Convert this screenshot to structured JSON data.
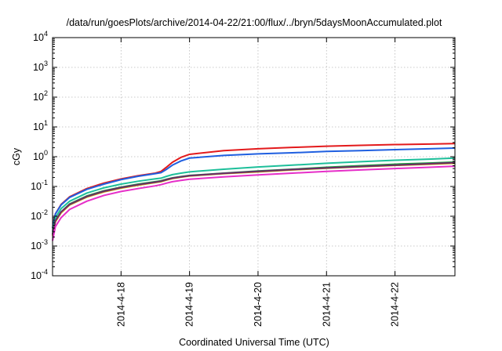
{
  "chart_data": {
    "type": "line",
    "title": "/data/run/goesPlots/archive/2014-04-22/21:00/flux/../bryn/5daysMoonAccumulated.plot",
    "xlabel": "Coordinated Universal Time (UTC)",
    "ylabel": "cGy",
    "y_scale": "log",
    "ylim": [
      0.0001,
      10000
    ],
    "xlim": [
      "2014-04-17 00:00",
      "2014-04-22 21:00"
    ],
    "grid": true,
    "legend": "none",
    "x_ticks": [
      {
        "x": "2014-04-18 00:00",
        "label": "2014-4-18"
      },
      {
        "x": "2014-04-19 00:00",
        "label": "2014-4-19"
      },
      {
        "x": "2014-04-20 00:00",
        "label": "2014-4-20"
      },
      {
        "x": "2014-04-21 00:00",
        "label": "2014-4-21"
      },
      {
        "x": "2014-04-22 00:00",
        "label": "2014-4-22"
      }
    ],
    "y_ticks": [
      {
        "base": "10",
        "exp": "-4",
        "value": 0.0001
      },
      {
        "base": "10",
        "exp": "-3",
        "value": 0.001
      },
      {
        "base": "10",
        "exp": "-2",
        "value": 0.01
      },
      {
        "base": "10",
        "exp": "-1",
        "value": 0.1
      },
      {
        "base": "10",
        "exp": "0",
        "value": 1
      },
      {
        "base": "10",
        "exp": "1",
        "value": 10
      },
      {
        "base": "10",
        "exp": "2",
        "value": 100
      },
      {
        "base": "10",
        "exp": "3",
        "value": 1000
      },
      {
        "base": "10",
        "exp": "4",
        "value": 10000
      }
    ],
    "series": [
      {
        "color": "#e31a1c",
        "points": [
          [
            "2014-04-17 00:00",
            0.004
          ],
          [
            "2014-04-17 01:00",
            0.012
          ],
          [
            "2014-04-17 03:00",
            0.025
          ],
          [
            "2014-04-17 06:00",
            0.045
          ],
          [
            "2014-04-17 12:00",
            0.085
          ],
          [
            "2014-04-17 18:00",
            0.13
          ],
          [
            "2014-04-18 00:00",
            0.18
          ],
          [
            "2014-04-18 06:00",
            0.23
          ],
          [
            "2014-04-18 12:00",
            0.28
          ],
          [
            "2014-04-18 14:00",
            0.32
          ],
          [
            "2014-04-18 16:00",
            0.45
          ],
          [
            "2014-04-18 18:00",
            0.65
          ],
          [
            "2014-04-18 21:00",
            0.95
          ],
          [
            "2014-04-19 00:00",
            1.2
          ],
          [
            "2014-04-19 12:00",
            1.6
          ],
          [
            "2014-04-20 00:00",
            1.85
          ],
          [
            "2014-04-20 12:00",
            2.05
          ],
          [
            "2014-04-21 00:00",
            2.25
          ],
          [
            "2014-04-21 12:00",
            2.4
          ],
          [
            "2014-04-22 00:00",
            2.55
          ],
          [
            "2014-04-22 12:00",
            2.65
          ],
          [
            "2014-04-22 21:00",
            2.75
          ]
        ]
      },
      {
        "color": "#1f5fe0",
        "points": [
          [
            "2014-04-17 00:00",
            0.004
          ],
          [
            "2014-04-17 01:00",
            0.012
          ],
          [
            "2014-04-17 03:00",
            0.024
          ],
          [
            "2014-04-17 06:00",
            0.043
          ],
          [
            "2014-04-17 12:00",
            0.08
          ],
          [
            "2014-04-17 18:00",
            0.12
          ],
          [
            "2014-04-18 00:00",
            0.17
          ],
          [
            "2014-04-18 06:00",
            0.22
          ],
          [
            "2014-04-18 12:00",
            0.27
          ],
          [
            "2014-04-18 14:00",
            0.29
          ],
          [
            "2014-04-18 16:00",
            0.38
          ],
          [
            "2014-04-18 18:00",
            0.52
          ],
          [
            "2014-04-18 21:00",
            0.72
          ],
          [
            "2014-04-19 00:00",
            0.9
          ],
          [
            "2014-04-19 12:00",
            1.1
          ],
          [
            "2014-04-20 00:00",
            1.25
          ],
          [
            "2014-04-20 12:00",
            1.35
          ],
          [
            "2014-04-21 00:00",
            1.5
          ],
          [
            "2014-04-21 12:00",
            1.6
          ],
          [
            "2014-04-22 00:00",
            1.72
          ],
          [
            "2014-04-22 12:00",
            1.85
          ],
          [
            "2014-04-22 21:00",
            1.95
          ]
        ]
      },
      {
        "color": "#1dbf9a",
        "points": [
          [
            "2014-04-17 00:00",
            0.003
          ],
          [
            "2014-04-17 01:00",
            0.009
          ],
          [
            "2014-04-17 03:00",
            0.018
          ],
          [
            "2014-04-17 06:00",
            0.032
          ],
          [
            "2014-04-17 12:00",
            0.06
          ],
          [
            "2014-04-17 18:00",
            0.09
          ],
          [
            "2014-04-18 00:00",
            0.12
          ],
          [
            "2014-04-18 06:00",
            0.15
          ],
          [
            "2014-04-18 12:00",
            0.18
          ],
          [
            "2014-04-18 14:00",
            0.19
          ],
          [
            "2014-04-18 16:00",
            0.22
          ],
          [
            "2014-04-18 18:00",
            0.25
          ],
          [
            "2014-04-18 21:00",
            0.28
          ],
          [
            "2014-04-19 00:00",
            0.31
          ],
          [
            "2014-04-19 12:00",
            0.38
          ],
          [
            "2014-04-20 00:00",
            0.45
          ],
          [
            "2014-04-20 12:00",
            0.52
          ],
          [
            "2014-04-21 00:00",
            0.6
          ],
          [
            "2014-04-21 12:00",
            0.68
          ],
          [
            "2014-04-22 00:00",
            0.76
          ],
          [
            "2014-04-22 12:00",
            0.83
          ],
          [
            "2014-04-22 21:00",
            0.9
          ]
        ]
      },
      {
        "color": "#1a9e3a",
        "points": [
          [
            "2014-04-17 00:00",
            0.0025
          ],
          [
            "2014-04-17 01:00",
            0.007
          ],
          [
            "2014-04-17 03:00",
            0.014
          ],
          [
            "2014-04-17 06:00",
            0.026
          ],
          [
            "2014-04-17 12:00",
            0.048
          ],
          [
            "2014-04-17 18:00",
            0.072
          ],
          [
            "2014-04-18 00:00",
            0.095
          ],
          [
            "2014-04-18 06:00",
            0.12
          ],
          [
            "2014-04-18 12:00",
            0.145
          ],
          [
            "2014-04-18 14:00",
            0.155
          ],
          [
            "2014-04-18 16:00",
            0.175
          ],
          [
            "2014-04-18 18:00",
            0.195
          ],
          [
            "2014-04-18 21:00",
            0.215
          ],
          [
            "2014-04-19 00:00",
            0.235
          ],
          [
            "2014-04-19 12:00",
            0.28
          ],
          [
            "2014-04-20 00:00",
            0.33
          ],
          [
            "2014-04-20 12:00",
            0.38
          ],
          [
            "2014-04-21 00:00",
            0.44
          ],
          [
            "2014-04-21 12:00",
            0.5
          ],
          [
            "2014-04-22 00:00",
            0.56
          ],
          [
            "2014-04-22 12:00",
            0.61
          ],
          [
            "2014-04-22 21:00",
            0.66
          ]
        ]
      },
      {
        "color": "#c8a000",
        "points": [
          [
            "2014-04-17 00:00",
            0.0022
          ],
          [
            "2014-04-17 01:00",
            0.0065
          ],
          [
            "2014-04-17 03:00",
            0.013
          ],
          [
            "2014-04-17 06:00",
            0.024
          ],
          [
            "2014-04-17 12:00",
            0.044
          ],
          [
            "2014-04-17 18:00",
            0.066
          ],
          [
            "2014-04-18 00:00",
            0.088
          ],
          [
            "2014-04-18 06:00",
            0.11
          ],
          [
            "2014-04-18 12:00",
            0.135
          ],
          [
            "2014-04-18 14:00",
            0.145
          ],
          [
            "2014-04-18 16:00",
            0.165
          ],
          [
            "2014-04-18 18:00",
            0.185
          ],
          [
            "2014-04-18 21:00",
            0.205
          ],
          [
            "2014-04-19 00:00",
            0.225
          ],
          [
            "2014-04-19 12:00",
            0.27
          ],
          [
            "2014-04-20 00:00",
            0.31
          ],
          [
            "2014-04-20 12:00",
            0.36
          ],
          [
            "2014-04-21 00:00",
            0.41
          ],
          [
            "2014-04-21 12:00",
            0.46
          ],
          [
            "2014-04-22 00:00",
            0.51
          ],
          [
            "2014-04-22 12:00",
            0.56
          ],
          [
            "2014-04-22 21:00",
            0.6
          ]
        ]
      },
      {
        "color": "#6b2a6a",
        "points": [
          [
            "2014-04-17 00:00",
            0.0024
          ],
          [
            "2014-04-17 01:00",
            0.007
          ],
          [
            "2014-04-17 03:00",
            0.014
          ],
          [
            "2014-04-17 06:00",
            0.025
          ],
          [
            "2014-04-17 12:00",
            0.046
          ],
          [
            "2014-04-17 18:00",
            0.069
          ],
          [
            "2014-04-18 00:00",
            0.092
          ],
          [
            "2014-04-18 06:00",
            0.115
          ],
          [
            "2014-04-18 12:00",
            0.14
          ],
          [
            "2014-04-18 14:00",
            0.15
          ],
          [
            "2014-04-18 16:00",
            0.17
          ],
          [
            "2014-04-18 18:00",
            0.19
          ],
          [
            "2014-04-18 21:00",
            0.21
          ],
          [
            "2014-04-19 00:00",
            0.23
          ],
          [
            "2014-04-19 12:00",
            0.275
          ],
          [
            "2014-04-20 00:00",
            0.32
          ],
          [
            "2014-04-20 12:00",
            0.37
          ],
          [
            "2014-04-21 00:00",
            0.42
          ],
          [
            "2014-04-21 12:00",
            0.47
          ],
          [
            "2014-04-22 00:00",
            0.52
          ],
          [
            "2014-04-22 12:00",
            0.58
          ],
          [
            "2014-04-22 21:00",
            0.63
          ]
        ]
      },
      {
        "color": "#e62ec8",
        "points": [
          [
            "2014-04-17 00:00",
            0.0015
          ],
          [
            "2014-04-17 01:00",
            0.0045
          ],
          [
            "2014-04-17 03:00",
            0.009
          ],
          [
            "2014-04-17 06:00",
            0.017
          ],
          [
            "2014-04-17 12:00",
            0.032
          ],
          [
            "2014-04-17 18:00",
            0.05
          ],
          [
            "2014-04-18 00:00",
            0.068
          ],
          [
            "2014-04-18 06:00",
            0.085
          ],
          [
            "2014-04-18 12:00",
            0.105
          ],
          [
            "2014-04-18 14:00",
            0.115
          ],
          [
            "2014-04-18 16:00",
            0.13
          ],
          [
            "2014-04-18 18:00",
            0.145
          ],
          [
            "2014-04-18 21:00",
            0.16
          ],
          [
            "2014-04-19 00:00",
            0.175
          ],
          [
            "2014-04-19 12:00",
            0.21
          ],
          [
            "2014-04-20 00:00",
            0.245
          ],
          [
            "2014-04-20 12:00",
            0.28
          ],
          [
            "2014-04-21 00:00",
            0.32
          ],
          [
            "2014-04-21 12:00",
            0.36
          ],
          [
            "2014-04-22 00:00",
            0.4
          ],
          [
            "2014-04-22 12:00",
            0.44
          ],
          [
            "2014-04-22 21:00",
            0.48
          ]
        ]
      }
    ]
  }
}
